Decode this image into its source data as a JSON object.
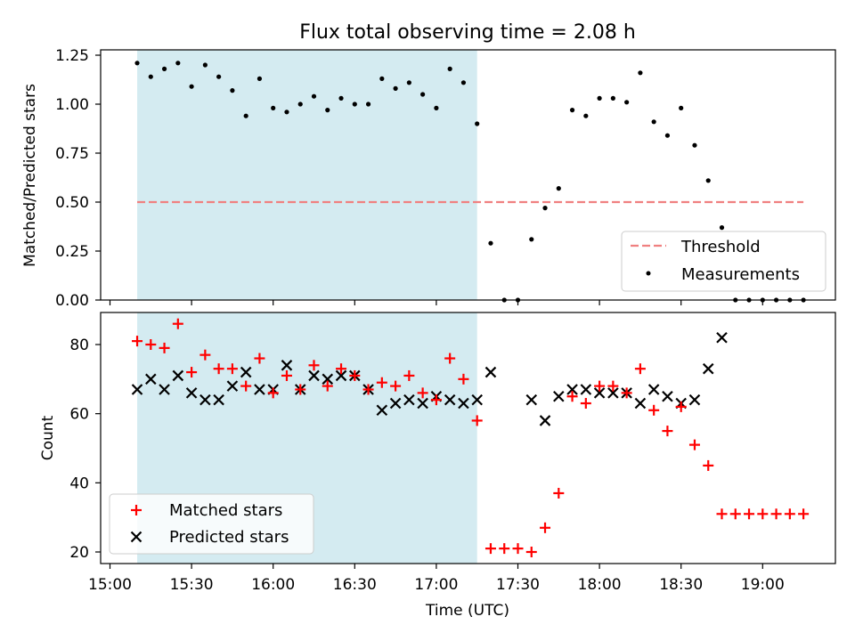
{
  "chart_data": [
    {
      "type": "scatter",
      "title": "Flux total observing time = 2.08 h",
      "xlabel": "",
      "ylabel": "Matched/Predicted stars",
      "ylim": [
        0,
        1.25
      ],
      "yticks": [
        "0.00",
        "0.25",
        "0.50",
        "0.75",
        "1.00",
        "1.25"
      ],
      "shaded_region": {
        "x_start": "15:10",
        "x_end": "17:15",
        "color": "#d4ebf1"
      },
      "threshold": {
        "name": "Threshold",
        "value": 0.5,
        "x_start": "15:10",
        "x_end": "19:15",
        "color": "#f08080"
      },
      "series": [
        {
          "name": "Measurements",
          "color": "#000000",
          "x": [
            "15:10",
            "15:15",
            "15:20",
            "15:25",
            "15:30",
            "15:35",
            "15:40",
            "15:45",
            "15:50",
            "15:55",
            "16:00",
            "16:05",
            "16:10",
            "16:15",
            "16:20",
            "16:25",
            "16:30",
            "16:35",
            "16:40",
            "16:45",
            "16:50",
            "16:55",
            "17:00",
            "17:05",
            "17:10",
            "17:15",
            "17:20",
            "17:25",
            "17:30",
            "17:35",
            "17:40",
            "17:45",
            "17:50",
            "17:55",
            "18:00",
            "18:05",
            "18:10",
            "18:15",
            "18:20",
            "18:25",
            "18:30",
            "18:35",
            "18:40",
            "18:45",
            "18:50",
            "18:55",
            "19:00",
            "19:05",
            "19:10",
            "19:15"
          ],
          "values": [
            1.21,
            1.14,
            1.18,
            1.21,
            1.09,
            1.2,
            1.14,
            1.07,
            0.94,
            1.13,
            0.98,
            0.96,
            1.0,
            1.04,
            0.97,
            1.03,
            1.0,
            1.0,
            1.13,
            1.08,
            1.11,
            1.05,
            0.98,
            1.18,
            1.11,
            0.9,
            0.29,
            0.0,
            0.0,
            0.31,
            0.47,
            0.57,
            0.97,
            0.94,
            1.03,
            1.03,
            1.01,
            1.16,
            0.91,
            0.84,
            0.98,
            0.79,
            0.61,
            0.37,
            0.0,
            0.0,
            0.0,
            0.0,
            0.0,
            0.0
          ]
        }
      ],
      "legend": {
        "position": "lower right",
        "entries": [
          "Threshold",
          "Measurements"
        ]
      }
    },
    {
      "type": "scatter",
      "title": "",
      "xlabel": "Time (UTC)",
      "ylabel": "Count",
      "ylim": [
        16,
        89
      ],
      "yticks": [
        "20",
        "40",
        "60",
        "80"
      ],
      "xticks": [
        "15:00",
        "15:30",
        "16:00",
        "16:30",
        "17:00",
        "17:30",
        "18:00",
        "18:30",
        "19:00"
      ],
      "shaded_region": {
        "x_start": "15:10",
        "x_end": "17:15",
        "color": "#d4ebf1"
      },
      "series": [
        {
          "name": "Matched stars",
          "marker": "+",
          "color": "#ff0000",
          "x": [
            "15:10",
            "15:15",
            "15:20",
            "15:25",
            "15:30",
            "15:35",
            "15:40",
            "15:45",
            "15:50",
            "15:55",
            "16:00",
            "16:05",
            "16:10",
            "16:15",
            "16:20",
            "16:25",
            "16:30",
            "16:35",
            "16:40",
            "16:45",
            "16:50",
            "16:55",
            "17:00",
            "17:05",
            "17:10",
            "17:15",
            "17:20",
            "17:25",
            "17:30",
            "17:35",
            "17:40",
            "17:45",
            "17:50",
            "17:55",
            "18:00",
            "18:05",
            "18:10",
            "18:15",
            "18:20",
            "18:25",
            "18:30",
            "18:35",
            "18:40",
            "18:45",
            "18:50",
            "18:55",
            "19:00",
            "19:05",
            "19:10",
            "19:15"
          ],
          "values": [
            81,
            80,
            79,
            86,
            72,
            77,
            73,
            73,
            68,
            76,
            66,
            71,
            67,
            74,
            68,
            73,
            71,
            67,
            69,
            68,
            71,
            66,
            64,
            76,
            70,
            58,
            21,
            21,
            21,
            20,
            27,
            37,
            65,
            63,
            68,
            68,
            66,
            73,
            61,
            55,
            62,
            51,
            45,
            31,
            31,
            31,
            31,
            31,
            31,
            31
          ]
        },
        {
          "name": "Predicted stars",
          "marker": "x",
          "color": "#000000",
          "x": [
            "15:10",
            "15:15",
            "15:20",
            "15:25",
            "15:30",
            "15:35",
            "15:40",
            "15:45",
            "15:50",
            "15:55",
            "16:00",
            "16:05",
            "16:10",
            "16:15",
            "16:20",
            "16:25",
            "16:30",
            "16:35",
            "16:40",
            "16:45",
            "16:50",
            "16:55",
            "17:00",
            "17:05",
            "17:10",
            "17:15",
            "17:20",
            "17:35",
            "17:40",
            "17:45",
            "17:50",
            "17:55",
            "18:00",
            "18:05",
            "18:10",
            "18:15",
            "18:20",
            "18:25",
            "18:30",
            "18:35",
            "18:40",
            "18:45"
          ],
          "values": [
            67,
            70,
            67,
            71,
            66,
            64,
            64,
            68,
            72,
            67,
            67,
            74,
            67,
            71,
            70,
            71,
            71,
            67,
            61,
            63,
            64,
            63,
            65,
            64,
            63,
            64,
            72,
            64,
            58,
            65,
            67,
            67,
            66,
            66,
            66,
            63,
            67,
            65,
            63,
            64,
            73,
            82
          ]
        }
      ],
      "legend": {
        "position": "lower left",
        "entries": [
          "Matched stars",
          "Predicted stars"
        ]
      }
    }
  ]
}
